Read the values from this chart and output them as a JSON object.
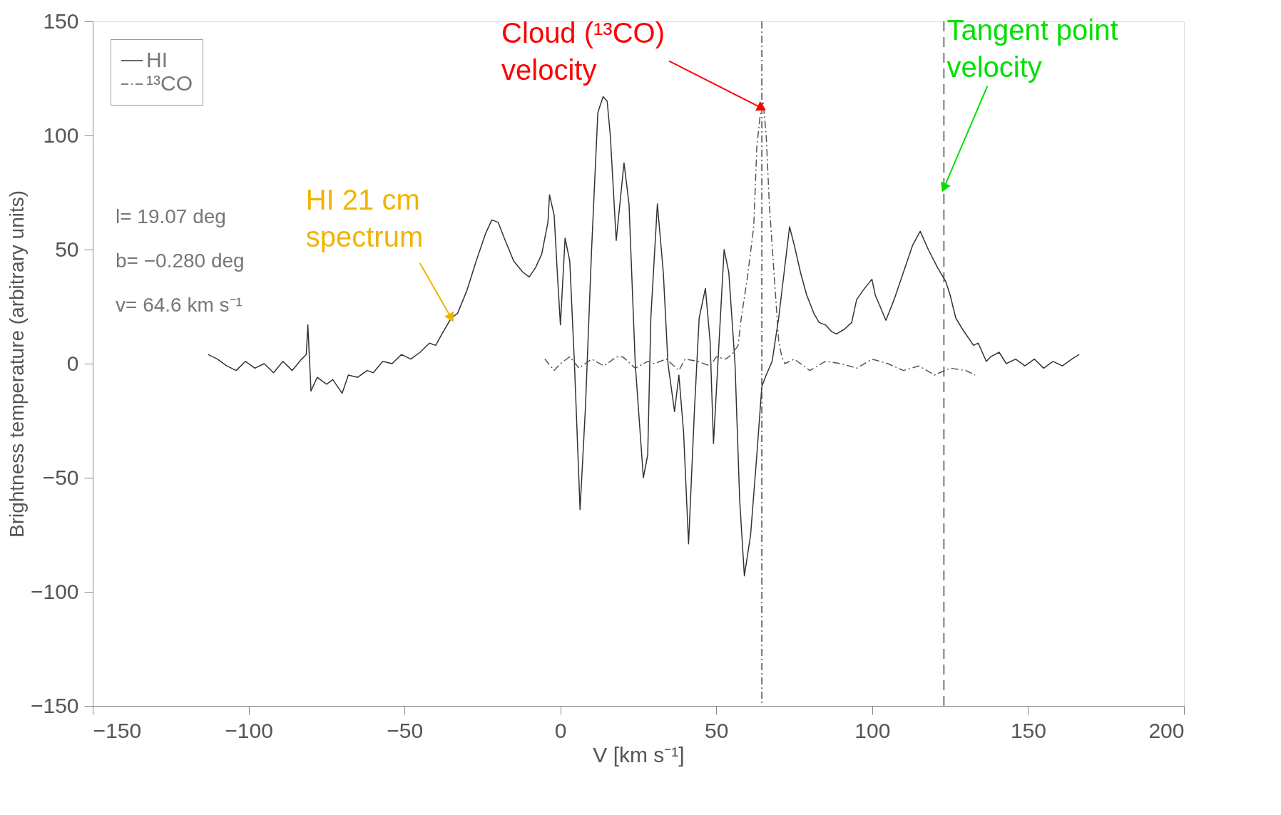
{
  "chart_data": {
    "type": "line",
    "xlabel": "V [km s⁻¹]",
    "ylabel": "Brightness temperature (arbitrary units)",
    "xlim": [
      -150,
      200
    ],
    "xticks": [
      -150,
      -100,
      -50,
      0,
      50,
      100,
      150,
      200
    ],
    "ylim": [
      -150,
      150
    ],
    "yticks": [
      -150,
      -100,
      -50,
      0,
      50,
      100,
      150
    ],
    "grid": false,
    "legend": "top left",
    "series": [
      {
        "name": "HI",
        "color": "#333333",
        "line_style": "solid",
        "x": [
          -113,
          -110,
          -107,
          -104,
          -101,
          -98,
          -95,
          -92,
          -89,
          -86,
          -83,
          -81.5,
          -81,
          -80,
          -78,
          -75,
          -73,
          -70,
          -68,
          -65,
          -62,
          -60,
          -57,
          -54,
          -51,
          -48,
          -45,
          -42,
          -40,
          -38,
          -35,
          -33,
          -30,
          -27,
          -24,
          -22,
          -20,
          -18,
          -15,
          -12,
          -10,
          -8,
          -6,
          -4,
          -3.5,
          -2,
          -1,
          0,
          1.5,
          3,
          4.5,
          6.3,
          8,
          10,
          12,
          13.7,
          15,
          16,
          17.9,
          20.4,
          22,
          24,
          26.6,
          28,
          29,
          31.1,
          33,
          34.5,
          36.6,
          38,
          39.5,
          41.1,
          43,
          44.5,
          46.5,
          48,
          49.1,
          50.5,
          52.5,
          54,
          56,
          57.5,
          59,
          61,
          63,
          64.6,
          66,
          67.9,
          70,
          73.5,
          75,
          77,
          79,
          81.3,
          83,
          85,
          87,
          88.5,
          91,
          93.4,
          95,
          97,
          99.9,
          101,
          104.4,
          107,
          110,
          113,
          115.4,
          118,
          121,
          123.6,
          125,
          126.8,
          129,
          132.5,
          134,
          136.6,
          138,
          140.7,
          143,
          146,
          149,
          152,
          155,
          158,
          161,
          164,
          166.4
        ],
        "values": [
          4,
          2,
          -1,
          -3,
          1,
          -2,
          0,
          -4,
          1,
          -3,
          2,
          4,
          17,
          -12,
          -6,
          -9,
          -7,
          -13,
          -5,
          -6,
          -3,
          -4,
          1,
          0,
          4,
          2,
          5,
          9,
          8,
          13,
          20,
          22,
          32,
          45,
          57,
          63,
          62,
          55,
          45,
          40,
          38,
          42,
          48,
          62,
          74,
          65,
          40,
          17,
          55,
          45,
          0,
          -64,
          -20,
          50,
          110,
          117,
          115,
          100,
          54,
          88,
          70,
          0,
          -50,
          -40,
          20,
          70,
          40,
          0,
          -21,
          -5,
          -30,
          -79,
          -20,
          20,
          33,
          10,
          -35,
          0,
          50,
          40,
          0,
          -60,
          -93,
          -75,
          -40,
          -10,
          -5,
          1,
          20,
          60,
          52,
          40,
          30,
          22,
          18,
          17,
          14,
          13,
          15,
          18,
          28,
          32,
          37,
          30,
          19,
          28,
          40,
          52,
          58,
          50,
          42,
          36,
          30,
          20,
          15,
          8,
          9,
          1,
          3,
          5,
          0,
          2,
          -1,
          2,
          -2,
          1,
          -1,
          2,
          4
        ]
      },
      {
        "name": "¹³CO",
        "color": "#555555",
        "line_style": "dashdot",
        "x": [
          -5,
          -2,
          0,
          3,
          6,
          10,
          14,
          18,
          20,
          24,
          28,
          30,
          34,
          38,
          40,
          44,
          48,
          50,
          53,
          55,
          57,
          58,
          60,
          62,
          63,
          64,
          65,
          66,
          67,
          68,
          69,
          70,
          71,
          72,
          75,
          80,
          85,
          90,
          95,
          100,
          105,
          110,
          115,
          120,
          125,
          130,
          133
        ],
        "values": [
          2,
          -3,
          0,
          3,
          -2,
          2,
          -1,
          3,
          3,
          -2,
          1,
          0,
          2,
          -3,
          2,
          1,
          -1,
          3,
          2,
          4,
          8,
          20,
          38,
          60,
          95,
          108,
          115,
          100,
          70,
          50,
          30,
          10,
          3,
          0,
          2,
          -3,
          1,
          0,
          -2,
          2,
          0,
          -3,
          -1,
          -5,
          -2,
          -3,
          -5
        ]
      }
    ],
    "ref_lines": [
      {
        "axis": "x",
        "value": 64.6,
        "line_style": "dashdot",
        "color": "#444444"
      },
      {
        "axis": "x",
        "value": 123,
        "line_style": "dashed",
        "color": "#444444"
      }
    ],
    "annotations": [
      "l= 19.07 deg",
      "b= −0.280 deg",
      "v= 64.6 km s⁻¹",
      {
        "text": "HI 21 cm spectrum",
        "x": -35,
        "y": 20
      },
      {
        "text": "Cloud (¹³CO) velocity",
        "x": 64.6,
        "y": 112
      },
      {
        "text": "Tangent point velocity",
        "x": 123,
        "y": 77
      }
    ]
  }
}
